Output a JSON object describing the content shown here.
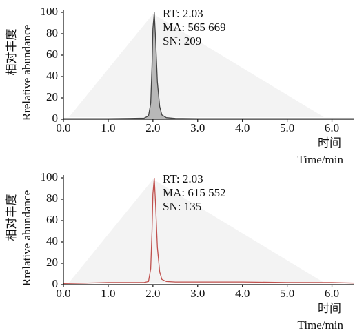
{
  "chart_data": [
    {
      "type": "line",
      "annotations": [
        "RT: 2.03",
        "MA: 565 669",
        "SN: 209"
      ],
      "ylabel": [
        "相对丰度",
        "Rrelative abundance"
      ],
      "xlabel": [
        "时间",
        "Time/min"
      ],
      "x": [
        0.0,
        0.5,
        1.0,
        1.5,
        1.8,
        1.9,
        1.95,
        1.98,
        2.0,
        2.03,
        2.06,
        2.1,
        2.15,
        2.2,
        2.3,
        2.5,
        3.0,
        4.0,
        5.0,
        6.0,
        6.5
      ],
      "series": [
        {
          "color": "#444444",
          "fill": "#b8b8b8",
          "values": [
            0.5,
            0.5,
            0.5,
            0.8,
            1,
            3,
            15,
            50,
            85,
            100,
            75,
            35,
            12,
            4,
            1.5,
            0.8,
            0.5,
            0.5,
            0.5,
            0.5,
            0.5
          ]
        }
      ],
      "xlim": [
        0,
        6.5
      ],
      "ylim": [
        0,
        100
      ],
      "xticks": [
        {
          "value": 0,
          "label": "0.0"
        },
        {
          "value": 1,
          "label": "1.0"
        },
        {
          "value": 2,
          "label": "2.0"
        },
        {
          "value": 3,
          "label": "3.0"
        },
        {
          "value": 4,
          "label": "4.0"
        },
        {
          "value": 5,
          "label": "5.0"
        },
        {
          "value": 6,
          "label": "6.0"
        }
      ],
      "yticks": [
        0,
        20,
        40,
        60,
        80,
        100
      ]
    },
    {
      "type": "line",
      "annotations": [
        "RT: 2.03",
        "MA: 615 552",
        "SN: 135"
      ],
      "ylabel": [
        "相对丰度",
        "Rrelative abundance"
      ],
      "xlabel": [
        "时间",
        "Time/min"
      ],
      "x": [
        0.0,
        0.5,
        1.0,
        1.5,
        1.8,
        1.9,
        1.95,
        1.98,
        2.0,
        2.03,
        2.06,
        2.1,
        2.15,
        2.2,
        2.3,
        2.5,
        3.0,
        4.0,
        5.0,
        6.0,
        6.5
      ],
      "series": [
        {
          "color": "#c0504d",
          "values": [
            1,
            1.5,
            2,
            2,
            2,
            3,
            15,
            50,
            85,
            100,
            75,
            35,
            12,
            5,
            3,
            2.5,
            2.5,
            2.5,
            2,
            2,
            1.5
          ]
        }
      ],
      "xlim": [
        0,
        6.5
      ],
      "ylim": [
        0,
        100
      ],
      "xticks": [
        {
          "value": 0,
          "label": "0.0"
        },
        {
          "value": 1,
          "label": "1.0"
        },
        {
          "value": 2,
          "label": "2.0"
        },
        {
          "value": 3,
          "label": "3.0"
        },
        {
          "value": 4,
          "label": "4.0"
        },
        {
          "value": 5,
          "label": "5.0"
        },
        {
          "value": 6,
          "label": "6.0"
        }
      ],
      "yticks": [
        0,
        20,
        40,
        60,
        80,
        100
      ]
    }
  ]
}
